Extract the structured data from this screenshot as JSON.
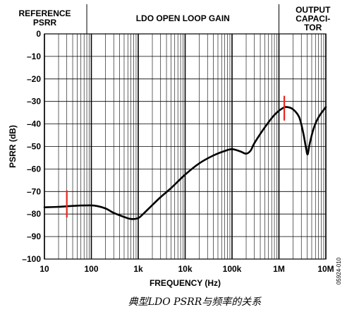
{
  "chart_data": {
    "type": "line",
    "x_scale": "log",
    "xlim": [
      10,
      10000000
    ],
    "ylim": [
      -100,
      0
    ],
    "xlabel": "FREQUENCY (Hz)",
    "ylabel": "PSRR (dB)",
    "x_ticks": [
      {
        "value": 10,
        "label": "10"
      },
      {
        "value": 100,
        "label": "100"
      },
      {
        "value": 1000,
        "label": "1k"
      },
      {
        "value": 10000,
        "label": "10k"
      },
      {
        "value": 100000,
        "label": "100k"
      },
      {
        "value": 1000000,
        "label": "1M"
      },
      {
        "value": 10000000,
        "label": "10M"
      }
    ],
    "y_ticks": [
      {
        "value": 0,
        "label": "0"
      },
      {
        "value": -10,
        "label": "–10"
      },
      {
        "value": -20,
        "label": "–20"
      },
      {
        "value": -30,
        "label": "–30"
      },
      {
        "value": -40,
        "label": "–40"
      },
      {
        "value": -50,
        "label": "–50"
      },
      {
        "value": -60,
        "label": "–60"
      },
      {
        "value": -70,
        "label": "–70"
      },
      {
        "value": -80,
        "label": "–80"
      },
      {
        "value": -90,
        "label": "–90"
      },
      {
        "value": -100,
        "label": "–100"
      }
    ],
    "grid": true,
    "regions": [
      {
        "name": "reference-psrr",
        "lines": [
          "REFERENCE",
          "PSRR"
        ],
        "x_end": 80
      },
      {
        "name": "ldo-open-loop-gain",
        "lines": [
          "LDO OPEN LOOP GAIN"
        ],
        "x_start": 80,
        "x_end": 1000000
      },
      {
        "name": "output-capacitor",
        "lines": [
          "OUTPUT",
          "CAPACI-",
          "TOR"
        ],
        "x_start": 1000000
      }
    ],
    "series": [
      {
        "color": "#000000",
        "points": [
          [
            10,
            -77
          ],
          [
            20,
            -76.8
          ],
          [
            40,
            -76.4
          ],
          [
            70,
            -76.2
          ],
          [
            120,
            -76.3
          ],
          [
            200,
            -77.5
          ],
          [
            300,
            -79.5
          ],
          [
            500,
            -81.3
          ],
          [
            700,
            -82.2
          ],
          [
            1000,
            -81.8
          ],
          [
            1300,
            -79.8
          ],
          [
            2000,
            -76
          ],
          [
            3000,
            -72.5
          ],
          [
            5000,
            -68.5
          ],
          [
            10000,
            -62.5
          ],
          [
            20000,
            -57.5
          ],
          [
            40000,
            -54
          ],
          [
            70000,
            -52
          ],
          [
            100000,
            -51.2
          ],
          [
            150000,
            -52.2
          ],
          [
            200000,
            -53.2
          ],
          [
            250000,
            -51.8
          ],
          [
            300000,
            -48.5
          ],
          [
            500000,
            -41.5
          ],
          [
            800000,
            -36
          ],
          [
            1200000,
            -33
          ],
          [
            1500000,
            -32.5
          ],
          [
            2000000,
            -33.5
          ],
          [
            2700000,
            -37
          ],
          [
            3300000,
            -44
          ],
          [
            3800000,
            -51
          ],
          [
            4100000,
            -53.5
          ],
          [
            4500000,
            -49
          ],
          [
            5500000,
            -42
          ],
          [
            7000000,
            -37
          ],
          [
            10000000,
            -32.5
          ]
        ]
      }
    ],
    "markers": [
      {
        "x": 30,
        "y_from": -69.5,
        "y_to": -81.5,
        "color": "#e8271f"
      },
      {
        "x": 1300000,
        "y_from": -27.5,
        "y_to": -38.5,
        "color": "#e8271f"
      }
    ],
    "figure_id": "05924-010",
    "caption": "典型LDO PSRR与频率的关系"
  }
}
